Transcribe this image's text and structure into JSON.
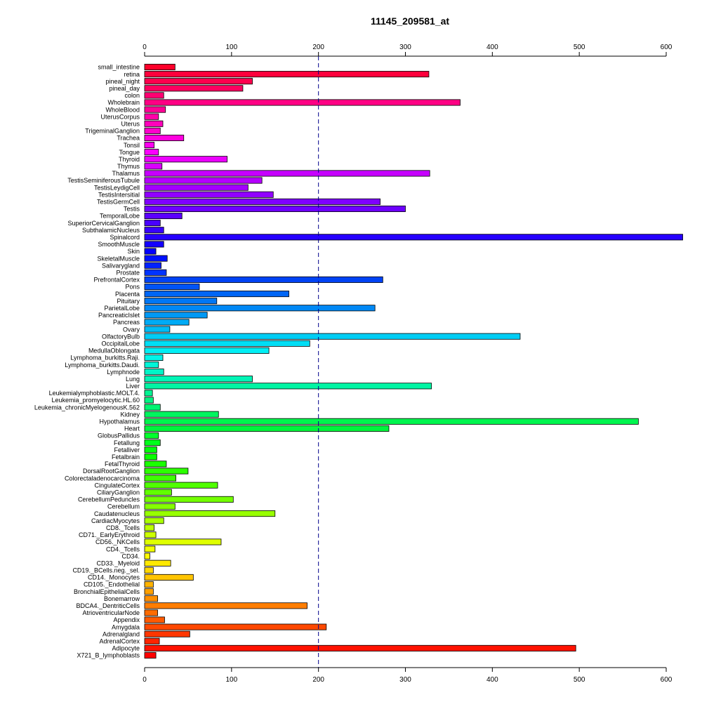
{
  "chart_data": {
    "type": "bar",
    "orientation": "horizontal",
    "title": "11145_209581_at",
    "xlim": [
      0,
      620
    ],
    "xticks": [
      0,
      100,
      200,
      300,
      400,
      500,
      600
    ],
    "reference_line": 200,
    "categories": [
      "small_intestine",
      "retina",
      "pineal_night",
      "pineal_day",
      "colon",
      "Wholebrain",
      "WholeBlood",
      "UterusCorpus",
      "Uterus",
      "TrigeminalGanglion",
      "Trachea",
      "Tonsil",
      "Tongue",
      "Thyroid",
      "Thymus",
      "Thalamus",
      "TestisSeminiferousTubule",
      "TestisLeydigCell",
      "TestisIntersitial",
      "TestisGermCell",
      "Testis",
      "TemporalLobe",
      "SuperiorCervicalGanglion",
      "SubthalamicNucleus",
      "Spinalcord",
      "SmoothMuscle",
      "Skin",
      "SkeletalMuscle",
      "Salivarygland",
      "Prostate",
      "PrefrontalCortex",
      "Pons",
      "Placenta",
      "Pituitary",
      "ParietalLobe",
      "PancreaticIslet",
      "Pancreas",
      "Ovary",
      "OlfactoryBulb",
      "OccipitalLobe",
      "MedullaOblongata",
      "Lymphoma_burkitts.Raji.",
      "Lymphoma_burkitts.Daudi.",
      "Lymphnode",
      "Lung",
      "Liver",
      "Leukemialymphoblastic.MOLT.4.",
      "Leukemia_promyelocytic.HL.60",
      "Leukemia_chronicMyelogenousK.562",
      "Kidney",
      "Hypothalamus",
      "Heart",
      "GlobusPallidus",
      "Fetallung",
      "Fetalliver",
      "Fetalbrain",
      "FetalThyroid",
      "DorsalRootGanglion",
      "Colorectaladenocarcinoma",
      "CingulateCortex",
      "CiliaryGanglion",
      "CerebellumPeduncles",
      "Cerebellum",
      "Caudatenucleus",
      "CardiacMyocytes",
      "CD8._Tcells",
      "CD71._EarlyErythroid",
      "CD56._NKCells",
      "CD4._Tcells",
      "CD34.",
      "CD33._Myeloid",
      "CD19._BCells.neg._sel.",
      "CD14._Monocytes",
      "CD105._Endothelial",
      "BronchialEpithelialCells",
      "Bonemarrow",
      "BDCA4._DentriticCells",
      "AtrioventricularNode",
      "Appendix",
      "Amygdala",
      "Adrenalgland",
      "AdrenalCortex",
      "Adipocyte",
      "X721_B_lymphoblasts"
    ],
    "values": [
      35,
      327,
      124,
      113,
      22,
      363,
      24,
      16,
      21,
      18,
      45,
      11,
      16,
      95,
      20,
      328,
      135,
      119,
      148,
      271,
      300,
      43,
      18,
      22,
      619,
      22,
      13,
      26,
      19,
      25,
      274,
      63,
      166,
      83,
      265,
      72,
      51,
      29,
      432,
      190,
      143,
      21,
      16,
      22,
      124,
      330,
      9,
      10,
      18,
      85,
      568,
      281,
      16,
      18,
      14,
      14,
      25,
      50,
      36,
      84,
      31,
      102,
      35,
      150,
      22,
      11,
      13,
      88,
      12,
      6,
      30,
      10,
      56,
      10,
      10,
      15,
      187,
      15,
      23,
      209,
      52,
      17,
      496,
      13
    ]
  }
}
